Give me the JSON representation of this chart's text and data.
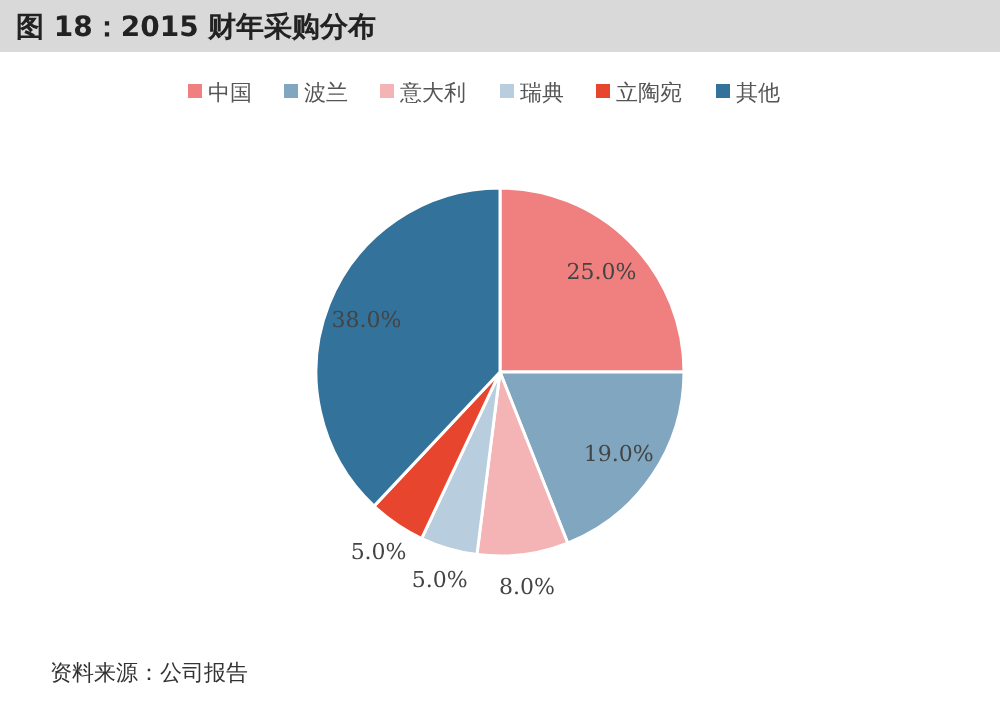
{
  "chart_data": {
    "type": "pie",
    "title": "图 18：2015 财年采购分布",
    "categories": [
      "中国",
      "波兰",
      "意大利",
      "瑞典",
      "立陶宛",
      "其他"
    ],
    "values": [
      25.0,
      19.0,
      8.0,
      5.0,
      5.0,
      38.0
    ],
    "colors": [
      "#f07f7f",
      "#80a6c0",
      "#f4b3b5",
      "#b8cddd",
      "#e8452f",
      "#33729a"
    ],
    "value_labels": [
      "25.0%",
      "19.0%",
      "8.0%",
      "5.0%",
      "5.0%",
      "38.0%"
    ],
    "legend": "top",
    "annotations": [
      "资料来源：公司报告"
    ]
  }
}
